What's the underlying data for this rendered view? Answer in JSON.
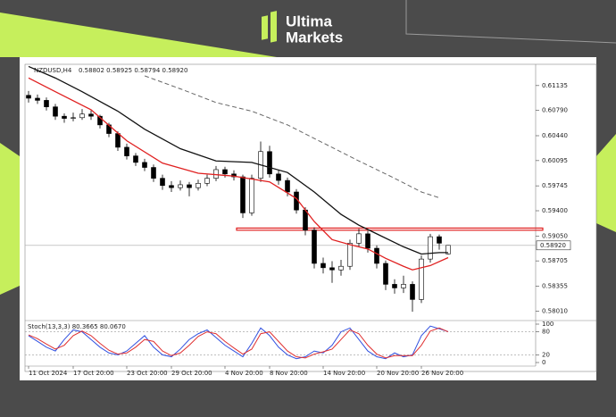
{
  "brand": {
    "line1": "Ultima",
    "line2": "Markets"
  },
  "chart_data": [
    {
      "type": "candlestick",
      "symbol": "NZDUSD,H4",
      "quote": "0.58802 0.58925 0.58794 0.58920",
      "xlim": [
        -0.4,
        56.8
      ],
      "ylim": [
        0.5789,
        0.6143
      ],
      "yticks": [
        0.61135,
        {
          "value": 0.6079,
          "label": "0.60790"
        },
        {
          "value": 0.6044,
          "label": "0.60440"
        },
        0.60095,
        0.59745,
        {
          "value": 0.594,
          "label": "0.59400"
        },
        {
          "value": 0.5905,
          "label": "0.59050"
        },
        0.58705,
        0.58355,
        {
          "value": 0.5801,
          "label": "0.58010"
        }
      ],
      "xticks": [
        {
          "value": 0,
          "label": "11 Oct 2024"
        },
        {
          "value": 5,
          "label": "17 Oct 20:00"
        },
        {
          "value": 11,
          "label": "23 Oct 20:00"
        },
        {
          "value": 16,
          "label": "29 Oct 20:00"
        },
        {
          "value": 22,
          "label": "4 Nov 20:00"
        },
        {
          "value": 27,
          "label": "8 Nov 20:00"
        },
        {
          "value": 33,
          "label": "14 Nov 20:00"
        },
        {
          "value": 39,
          "label": "20 Nov 20:00"
        },
        {
          "value": 44,
          "label": "26 Nov 20:00"
        }
      ],
      "up_color": "#ffffff",
      "down_color": "#000000",
      "candles": [
        [
          0.61,
          0.6106,
          0.609,
          0.6096
        ],
        [
          0.6096,
          0.6101,
          0.6088,
          0.6093
        ],
        [
          0.6093,
          0.6097,
          0.6079,
          0.6084
        ],
        [
          0.6084,
          0.6088,
          0.6066,
          0.6071
        ],
        [
          0.6071,
          0.6075,
          0.6062,
          0.6068
        ],
        [
          0.6068,
          0.6076,
          0.6064,
          0.6069
        ],
        [
          0.6069,
          0.6081,
          0.6066,
          0.6074
        ],
        [
          0.6074,
          0.6079,
          0.6066,
          0.6071
        ],
        [
          0.6071,
          0.6073,
          0.6054,
          0.6059
        ],
        [
          0.6059,
          0.6062,
          0.6042,
          0.6047
        ],
        [
          0.6047,
          0.605,
          0.6023,
          0.6028
        ],
        [
          0.6028,
          0.6033,
          0.6011,
          0.6016
        ],
        [
          0.6016,
          0.602,
          0.6002,
          0.6007
        ],
        [
          0.6007,
          0.6012,
          0.5995,
          0.6
        ],
        [
          0.6,
          0.6004,
          0.598,
          0.5985
        ],
        [
          0.5985,
          0.599,
          0.5969,
          0.5975
        ],
        [
          0.5975,
          0.5981,
          0.5966,
          0.5972
        ],
        [
          0.5972,
          0.5982,
          0.5968,
          0.5976
        ],
        [
          0.5976,
          0.598,
          0.596,
          0.5972
        ],
        [
          0.5972,
          0.5983,
          0.5968,
          0.5978
        ],
        [
          0.5978,
          0.599,
          0.5974,
          0.5985
        ],
        [
          0.5985,
          0.6002,
          0.5981,
          0.5997
        ],
        [
          0.5997,
          0.6001,
          0.5986,
          0.5991
        ],
        [
          0.5991,
          0.5996,
          0.5982,
          0.5987
        ],
        [
          0.5987,
          0.599,
          0.593,
          0.5937
        ],
        [
          0.5937,
          0.599,
          0.5933,
          0.5985
        ],
        [
          0.5985,
          0.6036,
          0.598,
          0.6022
        ],
        [
          0.6022,
          0.603,
          0.5986,
          0.5991
        ],
        [
          0.5991,
          0.5996,
          0.5976,
          0.5982
        ],
        [
          0.5982,
          0.5986,
          0.596,
          0.5966
        ],
        [
          0.5966,
          0.597,
          0.5936,
          0.5941
        ],
        [
          0.5941,
          0.5945,
          0.5906,
          0.5913
        ],
        [
          0.5913,
          0.5917,
          0.586,
          0.5867
        ],
        [
          0.5867,
          0.5875,
          0.5853,
          0.5861
        ],
        [
          0.5861,
          0.587,
          0.584,
          0.5858
        ],
        [
          0.5858,
          0.5872,
          0.585,
          0.5863
        ],
        [
          0.5863,
          0.59,
          0.5858,
          0.5895
        ],
        [
          0.5895,
          0.5915,
          0.589,
          0.5908
        ],
        [
          0.5908,
          0.5912,
          0.5882,
          0.5888
        ],
        [
          0.5888,
          0.5892,
          0.586,
          0.5867
        ],
        [
          0.5867,
          0.5871,
          0.583,
          0.5838
        ],
        [
          0.5838,
          0.5845,
          0.5825,
          0.5833
        ],
        [
          0.5833,
          0.585,
          0.5826,
          0.5838
        ],
        [
          0.5838,
          0.5842,
          0.58,
          0.5817
        ],
        [
          0.5817,
          0.5878,
          0.5812,
          0.5873
        ],
        [
          0.5873,
          0.5908,
          0.5868,
          0.5904
        ],
        [
          0.5904,
          0.5907,
          0.5886,
          0.5895
        ],
        [
          0.58802,
          0.58925,
          0.58794,
          0.5892
        ]
      ],
      "lines": [
        {
          "color": "#e02020",
          "dash": false,
          "x": [
            0,
            3,
            7,
            11,
            15,
            19,
            23,
            27,
            30,
            32,
            34,
            36,
            38,
            40,
            42,
            43,
            45,
            47
          ],
          "values": [
            0.6124,
            0.6105,
            0.608,
            0.6037,
            0.6006,
            0.5992,
            0.5988,
            0.598,
            0.5957,
            0.5925,
            0.59,
            0.5893,
            0.5887,
            0.5874,
            0.5863,
            0.5858,
            0.5864,
            0.5875
          ]
        },
        {
          "color": "#111111",
          "dash": false,
          "x": [
            0,
            3,
            6,
            10,
            13,
            17,
            21,
            25,
            29,
            32,
            35,
            37,
            39,
            42,
            44,
            46,
            47
          ],
          "values": [
            0.614,
            0.6124,
            0.6105,
            0.6078,
            0.6053,
            0.6026,
            0.6009,
            0.6007,
            0.5993,
            0.5966,
            0.5935,
            0.592,
            0.5908,
            0.589,
            0.588,
            0.5882,
            0.5882
          ]
        },
        {
          "color": "#666666",
          "dash": true,
          "x": [
            13,
            17,
            21,
            25,
            29,
            33,
            37,
            41,
            44,
            46
          ],
          "values": [
            0.6127,
            0.6109,
            0.609,
            0.6078,
            0.6059,
            0.6034,
            0.6009,
            0.5985,
            0.5966,
            0.5958
          ]
        }
      ],
      "zone": {
        "color": "#e02020",
        "ylim": [
          0.5913,
          0.5916
        ]
      },
      "last_price": {
        "value": 0.5892,
        "label": "0.58920"
      }
    },
    {
      "type": "line",
      "title": "Stoch(13,3,3) 80.3665 80.0670",
      "xlim": [
        -0.4,
        56.8
      ],
      "ylim": [
        0,
        100
      ],
      "yticks": [
        100,
        80,
        20,
        0
      ],
      "levels": [
        80,
        20
      ],
      "series": [
        {
          "color": "#3050e0",
          "values": [
            70,
            55,
            40,
            30,
            60,
            85,
            80,
            60,
            40,
            25,
            20,
            30,
            50,
            70,
            40,
            20,
            15,
            35,
            60,
            75,
            85,
            65,
            45,
            30,
            15,
            50,
            90,
            70,
            40,
            20,
            10,
            15,
            30,
            25,
            45,
            80,
            90,
            60,
            30,
            15,
            10,
            25,
            15,
            20,
            70,
            95,
            88,
            80.3665
          ]
        },
        {
          "color": "#e03030",
          "values": [
            72,
            62,
            48,
            35,
            45,
            70,
            82,
            70,
            50,
            32,
            22,
            25,
            40,
            60,
            55,
            30,
            18,
            25,
            45,
            68,
            80,
            75,
            55,
            38,
            22,
            35,
            75,
            80,
            55,
            30,
            15,
            12,
            22,
            28,
            35,
            60,
            85,
            75,
            45,
            22,
            12,
            18,
            18,
            18,
            45,
            82,
            90,
            80.067
          ]
        }
      ]
    }
  ]
}
